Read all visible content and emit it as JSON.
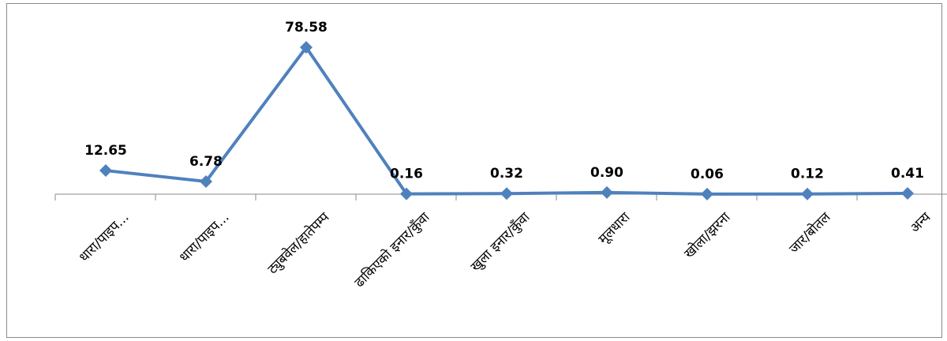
{
  "chart_data": {
    "type": "line",
    "categories": [
      "धारा/पाइप...",
      "धारा/पाइप...",
      "ट्युबवेल/हातेपम्प",
      "ढाकिएको इनार/कुँवा",
      "खुला इनार/कुँवा",
      "मूलधारा",
      "खोला/झरना",
      "जार/बोतल",
      "अन्य"
    ],
    "series": [
      {
        "values": [
          12.65,
          6.78,
          78.58,
          0.16,
          0.32,
          0.9,
          0.06,
          0.12,
          0.41
        ],
        "data_labels": [
          "12.65",
          "6.78",
          "78.58",
          "0.16",
          "0.32",
          "0.90",
          "0.06",
          "0.12",
          "0.41"
        ]
      }
    ],
    "title": "",
    "xlabel": "",
    "ylabel": "",
    "ylim": [
      0,
      90
    ],
    "grid": false,
    "legend": "none",
    "colors": {
      "line": "#4F81BD",
      "axis": "#8a8a8a"
    }
  }
}
